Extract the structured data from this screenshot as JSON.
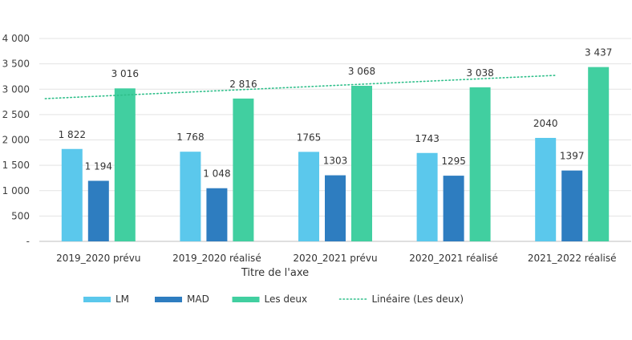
{
  "chart_data": {
    "type": "bar",
    "categories": [
      "2019_2020 prévu",
      "2019_2020 réalisé",
      "2020_2021 prévu",
      "2020_2021 réalisé",
      "2021_2022 réalisé"
    ],
    "series": [
      {
        "name": "LM",
        "color": "#5bc8ec",
        "values": [
          1822,
          1768,
          1765,
          1743,
          2040
        ],
        "value_labels": [
          "1 822",
          "1 768",
          "1765",
          "1743",
          "2040"
        ]
      },
      {
        "name": "MAD",
        "color": "#2e7dc0",
        "values": [
          1194,
          1048,
          1303,
          1295,
          1397
        ],
        "value_labels": [
          "1 194",
          "1 048",
          "1303",
          "1295",
          "1397"
        ]
      },
      {
        "name": "Les deux",
        "color": "#41cfa0",
        "values": [
          3016,
          2816,
          3068,
          3038,
          3437
        ],
        "value_labels": [
          "3 016",
          "2 816",
          "3 068",
          "3 038",
          "3 437"
        ]
      }
    ],
    "trendline": {
      "name": "Linéaire (Les deux)",
      "of_series": "Les deux",
      "type": "linear",
      "color": "#2fbf8a",
      "style": "dotted"
    },
    "xlabel": "Titre de l'axe",
    "ylabel": "",
    "ylim": [
      0,
      4000
    ],
    "yticks": [
      0,
      500,
      1000,
      1500,
      2000,
      2500,
      3000,
      3500,
      4000
    ],
    "ytick_labels": [
      "-",
      "500",
      "1 000",
      "1 500",
      "2 000",
      "2 500",
      "3 000",
      "3 500",
      "4 000"
    ],
    "grid": true,
    "legend_position": "bottom"
  }
}
